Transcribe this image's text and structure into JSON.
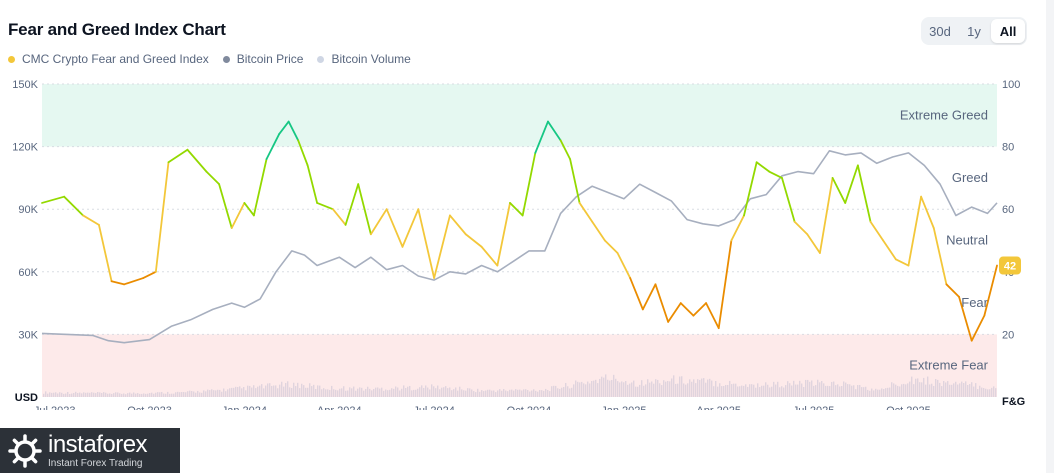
{
  "title": "Fear and Greed Index Chart",
  "range_buttons": [
    "30d",
    "1y",
    "All"
  ],
  "active_range": "All",
  "legend": [
    {
      "label": "CMC Crypto Fear and Greed Index",
      "color": "#f3c73a"
    },
    {
      "label": "Bitcoin Price",
      "color": "#808a9d"
    },
    {
      "label": "Bitcoin Volume",
      "color": "#cfd6e4"
    }
  ],
  "watermark": {
    "brand": "instaforex",
    "tagline": "Instant Forex Trading"
  },
  "chart_data": {
    "type": "line",
    "left_axis": {
      "title": "USD",
      "ticks": [
        "30K",
        "60K",
        "90K",
        "120K",
        "150K"
      ],
      "values": [
        30000,
        60000,
        90000,
        120000,
        150000
      ],
      "range": [
        0,
        150000
      ]
    },
    "right_axis": {
      "title": "F&G",
      "ticks": [
        "20",
        "40",
        "60",
        "80",
        "100"
      ],
      "values": [
        20,
        40,
        60,
        80,
        100
      ],
      "range": [
        0,
        100
      ]
    },
    "x_ticks": [
      "Jul 2023",
      "Oct 2023",
      "Jan 2024",
      "Apr 2024",
      "Jul 2024",
      "Oct 2024",
      "Jan 2025",
      "Apr 2025",
      "Jul 2025",
      "Oct 2025"
    ],
    "x_tick_months": [
      0,
      3,
      6,
      9,
      12,
      15,
      18,
      21,
      24,
      27
    ],
    "x_range_months": [
      -0.4,
      29.8
    ],
    "zones": [
      {
        "label": "Extreme Greed",
        "from": 80,
        "to": 100,
        "color": "#e5f8f1"
      },
      {
        "label": "Greed",
        "from": 60,
        "to": 80,
        "color": "none"
      },
      {
        "label": "Neutral",
        "from": 40,
        "to": 60,
        "color": "none"
      },
      {
        "label": "Fear",
        "from": 20,
        "to": 40,
        "color": "none"
      },
      {
        "label": "Extreme Fear",
        "from": 0,
        "to": 20,
        "color": "#fdeaea"
      }
    ],
    "current_value": 42,
    "series": [
      {
        "name": "Bitcoin Price",
        "unit": "USD",
        "color": "#a7afbf",
        "x": [
          -0.4,
          0.7,
          1.2,
          1.7,
          2.2,
          3.0,
          3.7,
          4.3,
          5.0,
          5.6,
          6.0,
          6.5,
          7.0,
          7.5,
          7.9,
          8.3,
          9.0,
          9.5,
          10.0,
          10.5,
          11.0,
          11.5,
          12.0,
          12.5,
          13.0,
          13.5,
          14.0,
          14.5,
          15.0,
          15.5,
          16.0,
          16.5,
          17.0,
          17.5,
          18.0,
          18.5,
          19.0,
          19.5,
          20.0,
          20.5,
          21.0,
          21.5,
          22.0,
          22.5,
          23.0,
          23.5,
          24.0,
          24.5,
          25.0,
          25.5,
          26.0,
          26.5,
          27.0,
          27.5,
          28.0,
          28.5,
          29.0,
          29.5,
          29.8
        ],
        "values": [
          30500,
          29800,
          29500,
          27000,
          26000,
          27500,
          34000,
          37000,
          42000,
          45000,
          43000,
          47000,
          60000,
          70000,
          68000,
          63000,
          67000,
          62000,
          67000,
          61000,
          63000,
          58000,
          56000,
          60000,
          59000,
          63000,
          60000,
          65000,
          70000,
          70000,
          88000,
          96000,
          101000,
          98000,
          95000,
          102000,
          98000,
          94000,
          85000,
          83000,
          82000,
          85000,
          95000,
          97000,
          106000,
          108000,
          107000,
          118000,
          116000,
          117000,
          112000,
          115000,
          117000,
          111000,
          102000,
          87000,
          91000,
          88000,
          93000
        ]
      },
      {
        "name": "CMC Crypto Fear and Greed Index",
        "unit": "index",
        "color": "#f3c73a",
        "x": [
          -0.4,
          0.3,
          0.9,
          1.4,
          1.8,
          2.2,
          2.8,
          3.2,
          3.6,
          4.2,
          4.8,
          5.2,
          5.6,
          6.0,
          6.3,
          6.7,
          7.1,
          7.4,
          7.7,
          8.0,
          8.3,
          8.8,
          9.2,
          9.6,
          10.0,
          10.5,
          11.0,
          11.5,
          12.0,
          12.5,
          13.0,
          13.5,
          14.0,
          14.4,
          14.8,
          15.2,
          15.6,
          16.0,
          16.3,
          16.6,
          17.0,
          17.4,
          17.8,
          18.2,
          18.6,
          19.0,
          19.4,
          19.8,
          20.2,
          20.6,
          21.0,
          21.4,
          21.8,
          22.2,
          22.6,
          23.0,
          23.4,
          23.8,
          24.2,
          24.6,
          25.0,
          25.4,
          25.8,
          26.2,
          26.6,
          27.0,
          27.4,
          27.8,
          28.2,
          28.6,
          29.0,
          29.4,
          29.8
        ],
        "values": [
          62,
          64,
          58,
          55,
          37,
          36,
          38,
          40,
          75,
          79,
          72,
          68,
          54,
          62,
          58,
          76,
          84,
          88,
          82,
          74,
          62,
          60,
          55,
          68,
          52,
          60,
          48,
          60,
          38,
          58,
          52,
          48,
          42,
          62,
          58,
          78,
          88,
          82,
          76,
          62,
          56,
          50,
          46,
          38,
          28,
          36,
          24,
          30,
          26,
          30,
          22,
          50,
          58,
          75,
          72,
          70,
          56,
          52,
          46,
          70,
          62,
          74,
          56,
          50,
          44,
          42,
          64,
          54,
          36,
          32,
          18,
          26,
          42
        ]
      },
      {
        "name": "Bitcoin Volume",
        "unit": "relative",
        "color": "#e0d4de",
        "x": [
          -0.4,
          2.0,
          4.0,
          5.0,
          7.5,
          8.5,
          10.0,
          12.0,
          13.5,
          15.5,
          17.5,
          18.5,
          19.5,
          20.5,
          22.0,
          24.0,
          25.0,
          26.0,
          27.0,
          28.0,
          29.0,
          29.8
        ],
        "values": [
          0.1,
          0.08,
          0.1,
          0.14,
          0.28,
          0.2,
          0.18,
          0.22,
          0.14,
          0.16,
          0.42,
          0.3,
          0.38,
          0.34,
          0.26,
          0.3,
          0.28,
          0.14,
          0.4,
          0.32,
          0.26,
          0.18
        ]
      }
    ]
  }
}
